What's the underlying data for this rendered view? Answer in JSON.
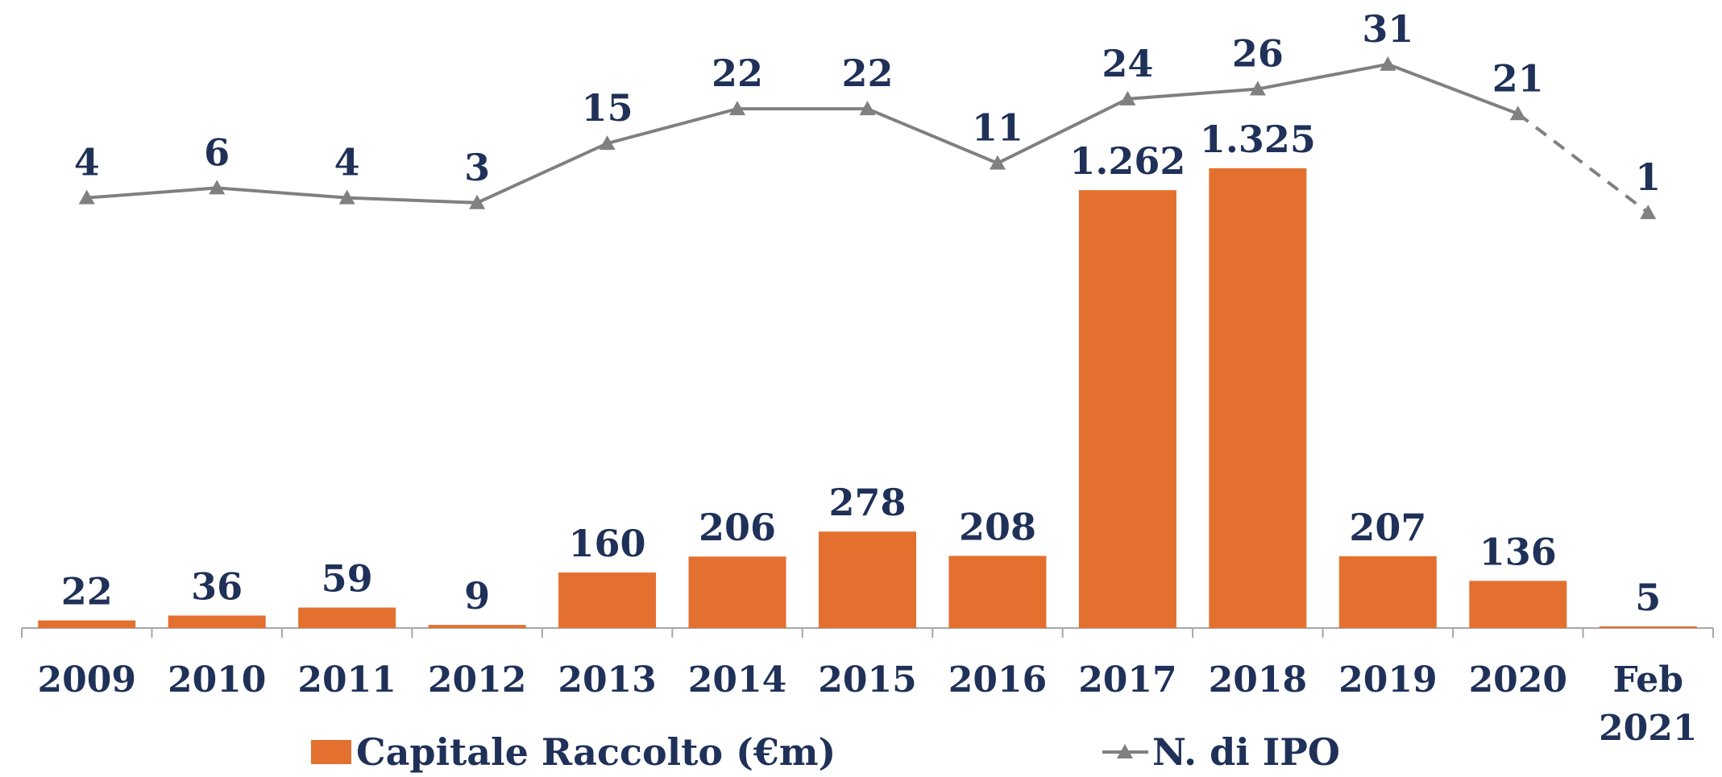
{
  "chart_data": {
    "type": "bar_line",
    "categories": [
      "2009",
      "2010",
      "2011",
      "2012",
      "2013",
      "2014",
      "2015",
      "2016",
      "2017",
      "2018",
      "2019",
      "2020",
      "Feb 2021"
    ],
    "series": [
      {
        "name": "Capitale Raccolto (€m)",
        "type": "bar",
        "color": "#e4702f",
        "axis": "y",
        "values": [
          22,
          36,
          59,
          9,
          160,
          206,
          278,
          208,
          1262,
          1325,
          207,
          136,
          5
        ],
        "value_labels": [
          "22",
          "36",
          "59",
          "9",
          "160",
          "206",
          "278",
          "208",
          "1.262",
          "1.325",
          "207",
          "136",
          "5"
        ]
      },
      {
        "name": "N. di IPO",
        "type": "line",
        "color": "#808080",
        "axis": "y2",
        "marker": "triangle",
        "dashed_from_index": 11,
        "values": [
          4,
          6,
          4,
          3,
          15,
          22,
          22,
          11,
          24,
          26,
          31,
          21,
          1
        ]
      }
    ],
    "ylim": [
      0,
      1810
    ],
    "y2lim": [
      -83,
      44
    ]
  }
}
